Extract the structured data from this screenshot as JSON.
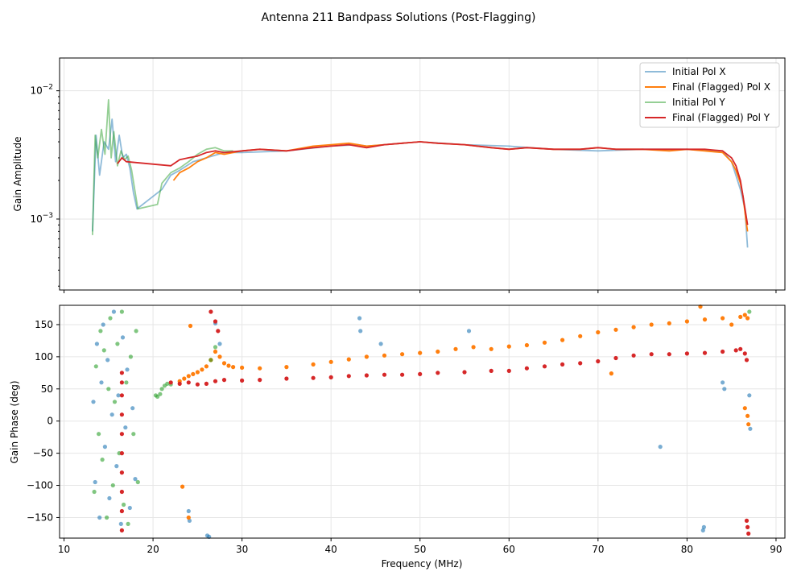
{
  "figure": {
    "title": "Antenna 211 Bandpass Solutions (Post-Flagging)"
  },
  "chart_data": [
    {
      "type": "line",
      "panel": "amplitude",
      "ylabel": "Gain Amplitude",
      "yscale": "log",
      "xlim": [
        9.5,
        91
      ],
      "ylim": [
        0.00028,
        0.018
      ],
      "xticks": [
        10,
        20,
        30,
        40,
        50,
        60,
        70,
        80,
        90
      ],
      "yticks": [
        {
          "value": 0.001,
          "label": "10",
          "exp": "−3"
        },
        {
          "value": 0.01,
          "label": "10",
          "exp": "−2"
        }
      ],
      "grid": true,
      "legend": {
        "position": "top-right",
        "entries": [
          "Initial Pol X",
          "Final (Flagged) Pol X",
          "Initial Pol Y",
          "Final (Flagged) Pol Y"
        ]
      },
      "series": [
        {
          "name": "Initial Pol X",
          "color": "#1f77b4",
          "opacity": 0.5,
          "x": [
            13.2,
            13.6,
            14.0,
            14.5,
            15.0,
            15.4,
            15.8,
            16.2,
            16.6,
            17.0,
            17.4,
            17.8,
            18.2,
            21.0,
            22.0,
            23.0,
            24.5,
            26.0,
            28.0,
            30.0,
            35.0,
            40.0,
            43.0,
            44.0,
            46.0,
            48.0,
            50.0,
            55.0,
            60.0,
            65.0,
            70.0,
            75.0,
            80.0,
            83.0,
            84.0,
            85.0,
            86.0,
            86.5,
            86.8
          ],
          "y": [
            0.0008,
            0.0045,
            0.0022,
            0.004,
            0.0035,
            0.006,
            0.0028,
            0.0045,
            0.003,
            0.0032,
            0.0025,
            0.0016,
            0.0012,
            0.0017,
            0.0022,
            0.0024,
            0.0028,
            0.003,
            0.0033,
            0.0033,
            0.0034,
            0.0037,
            0.0038,
            0.0037,
            0.0038,
            0.0039,
            0.004,
            0.0038,
            0.0037,
            0.0035,
            0.0034,
            0.0035,
            0.0035,
            0.0034,
            0.0034,
            0.0028,
            0.0017,
            0.0012,
            0.0006
          ]
        },
        {
          "name": "Final (Flagged) Pol X",
          "color": "#ff7f0e",
          "opacity": 1,
          "x": [
            22.3,
            23.0,
            24.0,
            25.0,
            26.0,
            27.0,
            28.0,
            30.0,
            32.0,
            35.0,
            38.0,
            40.0,
            42.0,
            44.0,
            46.0,
            48.0,
            50.0,
            52.0,
            55.0,
            58.0,
            60.0,
            62.0,
            65.0,
            68.0,
            70.0,
            72.0,
            75.0,
            78.0,
            80.0,
            82.0,
            84.0,
            85.0,
            85.5,
            86.0,
            86.3,
            86.6,
            86.8
          ],
          "y": [
            0.002,
            0.0023,
            0.0025,
            0.0028,
            0.003,
            0.0033,
            0.0032,
            0.0034,
            0.0035,
            0.0034,
            0.0037,
            0.0038,
            0.0039,
            0.0037,
            0.0038,
            0.0039,
            0.004,
            0.0039,
            0.0038,
            0.0036,
            0.0035,
            0.0036,
            0.0035,
            0.0035,
            0.0036,
            0.0035,
            0.0035,
            0.0034,
            0.0035,
            0.0034,
            0.0033,
            0.0028,
            0.0024,
            0.0019,
            0.0015,
            0.001,
            0.0008
          ]
        },
        {
          "name": "Initial Pol Y",
          "color": "#2ca02c",
          "opacity": 0.5,
          "x": [
            13.2,
            13.5,
            13.8,
            14.2,
            14.6,
            15.0,
            15.3,
            15.6,
            16.0,
            16.4,
            16.8,
            17.2,
            17.6,
            18.0,
            18.3,
            20.5,
            21.0,
            22.0,
            23.0,
            24.0,
            25.0,
            26.0,
            27.0,
            28.0,
            29.0
          ],
          "y": [
            0.00075,
            0.0045,
            0.003,
            0.005,
            0.0032,
            0.0085,
            0.003,
            0.0048,
            0.0026,
            0.0034,
            0.0029,
            0.0031,
            0.0024,
            0.0016,
            0.0012,
            0.0013,
            0.0019,
            0.0023,
            0.0025,
            0.0028,
            0.0032,
            0.0035,
            0.0036,
            0.0034,
            0.0034
          ]
        },
        {
          "name": "Final (Flagged) Pol Y",
          "color": "#d62728",
          "opacity": 1,
          "x": [
            16.0,
            16.5,
            17.0,
            22.0,
            23.0,
            24.0,
            25.0,
            26.0,
            27.0,
            28.0,
            30.0,
            32.0,
            35.0,
            38.0,
            40.0,
            42.0,
            44.0,
            46.0,
            48.0,
            50.0,
            52.0,
            55.0,
            58.0,
            60.0,
            62.0,
            65.0,
            68.0,
            70.0,
            72.0,
            75.0,
            78.0,
            80.0,
            82.0,
            84.0,
            85.0,
            85.5,
            86.0,
            86.3,
            86.6,
            86.8
          ],
          "y": [
            0.0027,
            0.003,
            0.0028,
            0.0026,
            0.0029,
            0.003,
            0.0031,
            0.0033,
            0.0034,
            0.0033,
            0.0034,
            0.0035,
            0.0034,
            0.0036,
            0.0037,
            0.0038,
            0.0036,
            0.0038,
            0.0039,
            0.004,
            0.0039,
            0.0038,
            0.0036,
            0.0035,
            0.0036,
            0.0035,
            0.0035,
            0.0036,
            0.0035,
            0.0035,
            0.0035,
            0.0035,
            0.0035,
            0.0034,
            0.003,
            0.0026,
            0.002,
            0.0015,
            0.0011,
            0.0009
          ]
        }
      ]
    },
    {
      "type": "scatter",
      "panel": "phase",
      "xlabel": "Frequency (MHz)",
      "ylabel": "Gain Phase (deg)",
      "xlim": [
        9.5,
        91
      ],
      "ylim": [
        -182,
        180
      ],
      "xticks": [
        10,
        20,
        30,
        40,
        50,
        60,
        70,
        80,
        90
      ],
      "yticks": [
        -150,
        -100,
        -50,
        0,
        50,
        100,
        150
      ],
      "grid": true,
      "series": [
        {
          "name": "Initial Pol X",
          "color": "#1f77b4",
          "opacity": 0.6,
          "x": [
            13.3,
            13.5,
            13.7,
            14.0,
            14.2,
            14.4,
            14.6,
            14.9,
            15.1,
            15.4,
            15.6,
            15.9,
            16.1,
            16.4,
            16.6,
            16.9,
            17.1,
            17.4,
            17.7,
            18.0,
            24.0,
            24.1,
            26.1,
            26.3,
            27.0,
            27.5,
            43.2,
            43.3,
            45.6,
            55.5,
            77.0,
            81.8,
            81.9,
            84.0,
            84.2,
            87.0,
            87.1
          ],
          "y": [
            30,
            -95,
            120,
            -150,
            60,
            150,
            -40,
            95,
            -120,
            10,
            170,
            -70,
            40,
            -160,
            130,
            -10,
            80,
            -135,
            20,
            -90,
            -140,
            -155,
            -178,
            -180,
            152,
            120,
            160,
            140,
            120,
            140,
            -40,
            -170,
            -165,
            60,
            50,
            40,
            -12
          ]
        },
        {
          "name": "Final (Flagged) Pol X",
          "color": "#ff7f0e",
          "opacity": 1,
          "x": [
            23.0,
            23.5,
            24.0,
            24.5,
            25.0,
            25.5,
            26.0,
            26.5,
            27.0,
            27.5,
            28.0,
            28.5,
            29.0,
            30.0,
            32.0,
            35.0,
            38.0,
            40.0,
            42.0,
            44.0,
            46.0,
            48.0,
            50.0,
            52.0,
            54.0,
            56.0,
            58.0,
            60.0,
            62.0,
            64.0,
            66.0,
            68.0,
            70.0,
            72.0,
            74.0,
            76.0,
            78.0,
            80.0,
            82.0,
            84.0,
            85.0,
            86.0,
            86.5,
            86.8,
            23.3,
            24.0,
            24.2,
            71.5,
            81.5,
            86.5,
            86.8,
            86.9
          ],
          "y": [
            62,
            66,
            70,
            73,
            76,
            80,
            85,
            95,
            108,
            100,
            90,
            86,
            84,
            83,
            82,
            84,
            88,
            92,
            96,
            100,
            102,
            104,
            106,
            108,
            112,
            115,
            112,
            116,
            118,
            122,
            126,
            132,
            138,
            142,
            146,
            150,
            152,
            155,
            158,
            160,
            150,
            162,
            165,
            160,
            -102,
            -150,
            148,
            74,
            178,
            20,
            8,
            -5
          ]
        },
        {
          "name": "Initial Pol Y",
          "color": "#2ca02c",
          "opacity": 0.6,
          "x": [
            13.4,
            13.6,
            13.9,
            14.1,
            14.3,
            14.5,
            14.8,
            15.0,
            15.2,
            15.5,
            15.7,
            16.0,
            16.2,
            16.5,
            16.7,
            17.0,
            17.2,
            17.5,
            17.8,
            18.1,
            18.3,
            20.3,
            20.5,
            20.8,
            21.0,
            21.3,
            21.6,
            22.0,
            26.5,
            27.0,
            87.0
          ],
          "y": [
            -110,
            85,
            -20,
            140,
            -60,
            110,
            -150,
            50,
            160,
            -100,
            30,
            120,
            -50,
            170,
            -130,
            60,
            -160,
            100,
            -20,
            140,
            -95,
            40,
            38,
            42,
            50,
            55,
            58,
            57,
            95,
            115,
            170
          ]
        },
        {
          "name": "Final (Flagged) Pol Y",
          "color": "#d62728",
          "opacity": 1,
          "x": [
            16.5,
            16.5,
            16.5,
            16.5,
            16.5,
            16.5,
            16.5,
            16.5,
            16.5,
            16.5,
            22.0,
            23.0,
            24.0,
            25.0,
            26.0,
            27.0,
            28.0,
            30.0,
            32.0,
            35.0,
            38.0,
            40.0,
            42.0,
            44.0,
            46.0,
            48.0,
            50.0,
            52.0,
            55.0,
            58.0,
            60.0,
            62.0,
            64.0,
            66.0,
            68.0,
            70.0,
            72.0,
            74.0,
            76.0,
            78.0,
            80.0,
            82.0,
            84.0,
            85.5,
            86.0,
            86.5,
            86.7,
            26.5,
            27.0,
            27.3,
            86.7,
            86.8,
            86.9
          ],
          "y": [
            -170,
            -140,
            -110,
            -80,
            -50,
            -20,
            10,
            40,
            60,
            75,
            60,
            58,
            60,
            57,
            58,
            62,
            64,
            63,
            64,
            66,
            67,
            68,
            70,
            71,
            72,
            72,
            73,
            75,
            76,
            78,
            78,
            82,
            85,
            88,
            90,
            93,
            98,
            102,
            104,
            104,
            105,
            106,
            108,
            110,
            112,
            105,
            95,
            170,
            155,
            140,
            -155,
            -165,
            -175
          ]
        }
      ]
    }
  ]
}
